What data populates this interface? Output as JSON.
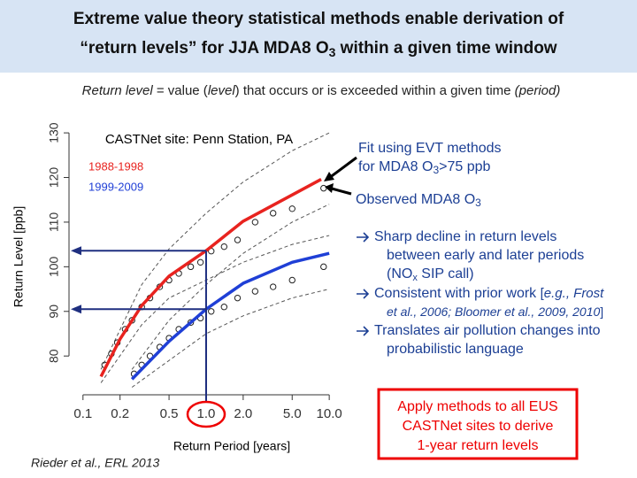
{
  "title": {
    "line1": "Extreme value theory statistical methods enable derivation of",
    "line2": [
      "“return levels” for JJA MDA8 O",
      "3",
      " within a given time window"
    ]
  },
  "subtitle": [
    "Return level",
    " = value (",
    "level",
    ") that occurs or is exceeded within a given time ",
    "(period)"
  ],
  "chart_data": {
    "type": "line",
    "xlabel": "Return Period [years]",
    "ylabel": "Return Level [ppb]",
    "xscale": "log",
    "xlim": [
      0.077,
      13
    ],
    "ylim": [
      72.5,
      132.4
    ],
    "xticks": [
      0.1,
      0.2,
      0.5,
      {
        "value": 1,
        "label": "1.0"
      },
      {
        "value": 2,
        "label": "2.0"
      },
      {
        "value": 5,
        "label": "5.0"
      },
      {
        "value": 10,
        "label": "10.0"
      }
    ],
    "yticks": [
      80,
      90,
      100,
      110,
      120,
      130
    ],
    "grid": false,
    "legend_title": "CASTNet site: Penn Station, PA",
    "series": [
      {
        "name": "1988-1998",
        "color": "#e8231f",
        "style": "line",
        "x": [
          0.14,
          0.2,
          0.3,
          0.5,
          1,
          2,
          5,
          8.6
        ],
        "values": [
          75.4,
          83.8,
          91.3,
          97.9,
          103.6,
          110.2,
          116.1,
          119.6
        ]
      },
      {
        "name": "1999-2009",
        "color": "#1f3fd6",
        "style": "line",
        "x": [
          0.25,
          0.5,
          1,
          2,
          5,
          10
        ],
        "values": [
          74.8,
          83.3,
          90.5,
          96.3,
          101,
          103
        ]
      },
      {
        "color": "#555555",
        "style": "dashed",
        "x": [
          0.14,
          0.3,
          0.5,
          1,
          2,
          5,
          10
        ],
        "values": [
          77,
          96,
          104,
          112,
          119,
          126,
          130
        ]
      },
      {
        "color": "#555555",
        "style": "dashed",
        "x": [
          0.14,
          0.3,
          0.5,
          1,
          2,
          5,
          10
        ],
        "values": [
          74,
          87,
          93,
          97,
          101,
          105,
          107
        ]
      },
      {
        "color": "#555555",
        "style": "dashed",
        "x": [
          0.25,
          0.5,
          1,
          2,
          5,
          10
        ],
        "values": [
          77,
          88,
          96,
          103,
          110,
          114
        ]
      },
      {
        "color": "#555555",
        "style": "dashed",
        "x": [
          0.25,
          0.5,
          1,
          2,
          5,
          10
        ],
        "values": [
          73,
          79,
          85,
          89,
          93,
          95
        ]
      },
      {
        "color": "#222222",
        "style": "points",
        "x": [
          0.15,
          0.17,
          0.19,
          0.22,
          0.25,
          0.3,
          0.35,
          0.42,
          0.5,
          0.6,
          0.75,
          0.9,
          1.1,
          1.4,
          1.8,
          2.5,
          3.5,
          5,
          9
        ],
        "values": [
          78,
          80.5,
          83,
          86,
          88,
          91,
          93,
          95.5,
          97,
          98.5,
          100,
          101,
          103.5,
          104.5,
          106,
          110,
          112,
          113,
          117.6
        ]
      },
      {
        "color": "#222222",
        "style": "points",
        "x": [
          0.26,
          0.3,
          0.35,
          0.42,
          0.5,
          0.6,
          0.75,
          0.9,
          1.1,
          1.4,
          1.8,
          2.5,
          3.5,
          5,
          9
        ],
        "values": [
          76,
          78,
          80,
          82,
          84,
          86,
          87.5,
          88.5,
          90,
          91,
          93,
          94.5,
          95.5,
          97,
          100
        ]
      }
    ]
  },
  "annotations": {
    "fit": [
      "Fit using EVT methods",
      "for MDA8 O",
      "3",
      ">75 ppb"
    ],
    "observed": [
      "Observed MDA8 O",
      "3"
    ]
  },
  "bullets": [
    [
      "Sharp decline in return levels",
      "between early and later periods",
      "(NO",
      "x",
      " SIP call)"
    ],
    [
      "Consistent with prior work ",
      "[",
      "e.g., Frost",
      "et al., 2006; Bloomer et al., 2009, 2010",
      "]"
    ],
    [
      "Translates air pollution changes into",
      "probabilistic language"
    ]
  ],
  "callout": [
    "Apply methods to all EUS",
    "CASTNet sites to derive",
    "1-year return levels"
  ],
  "citation": "Rieder et al., ERL 2013"
}
